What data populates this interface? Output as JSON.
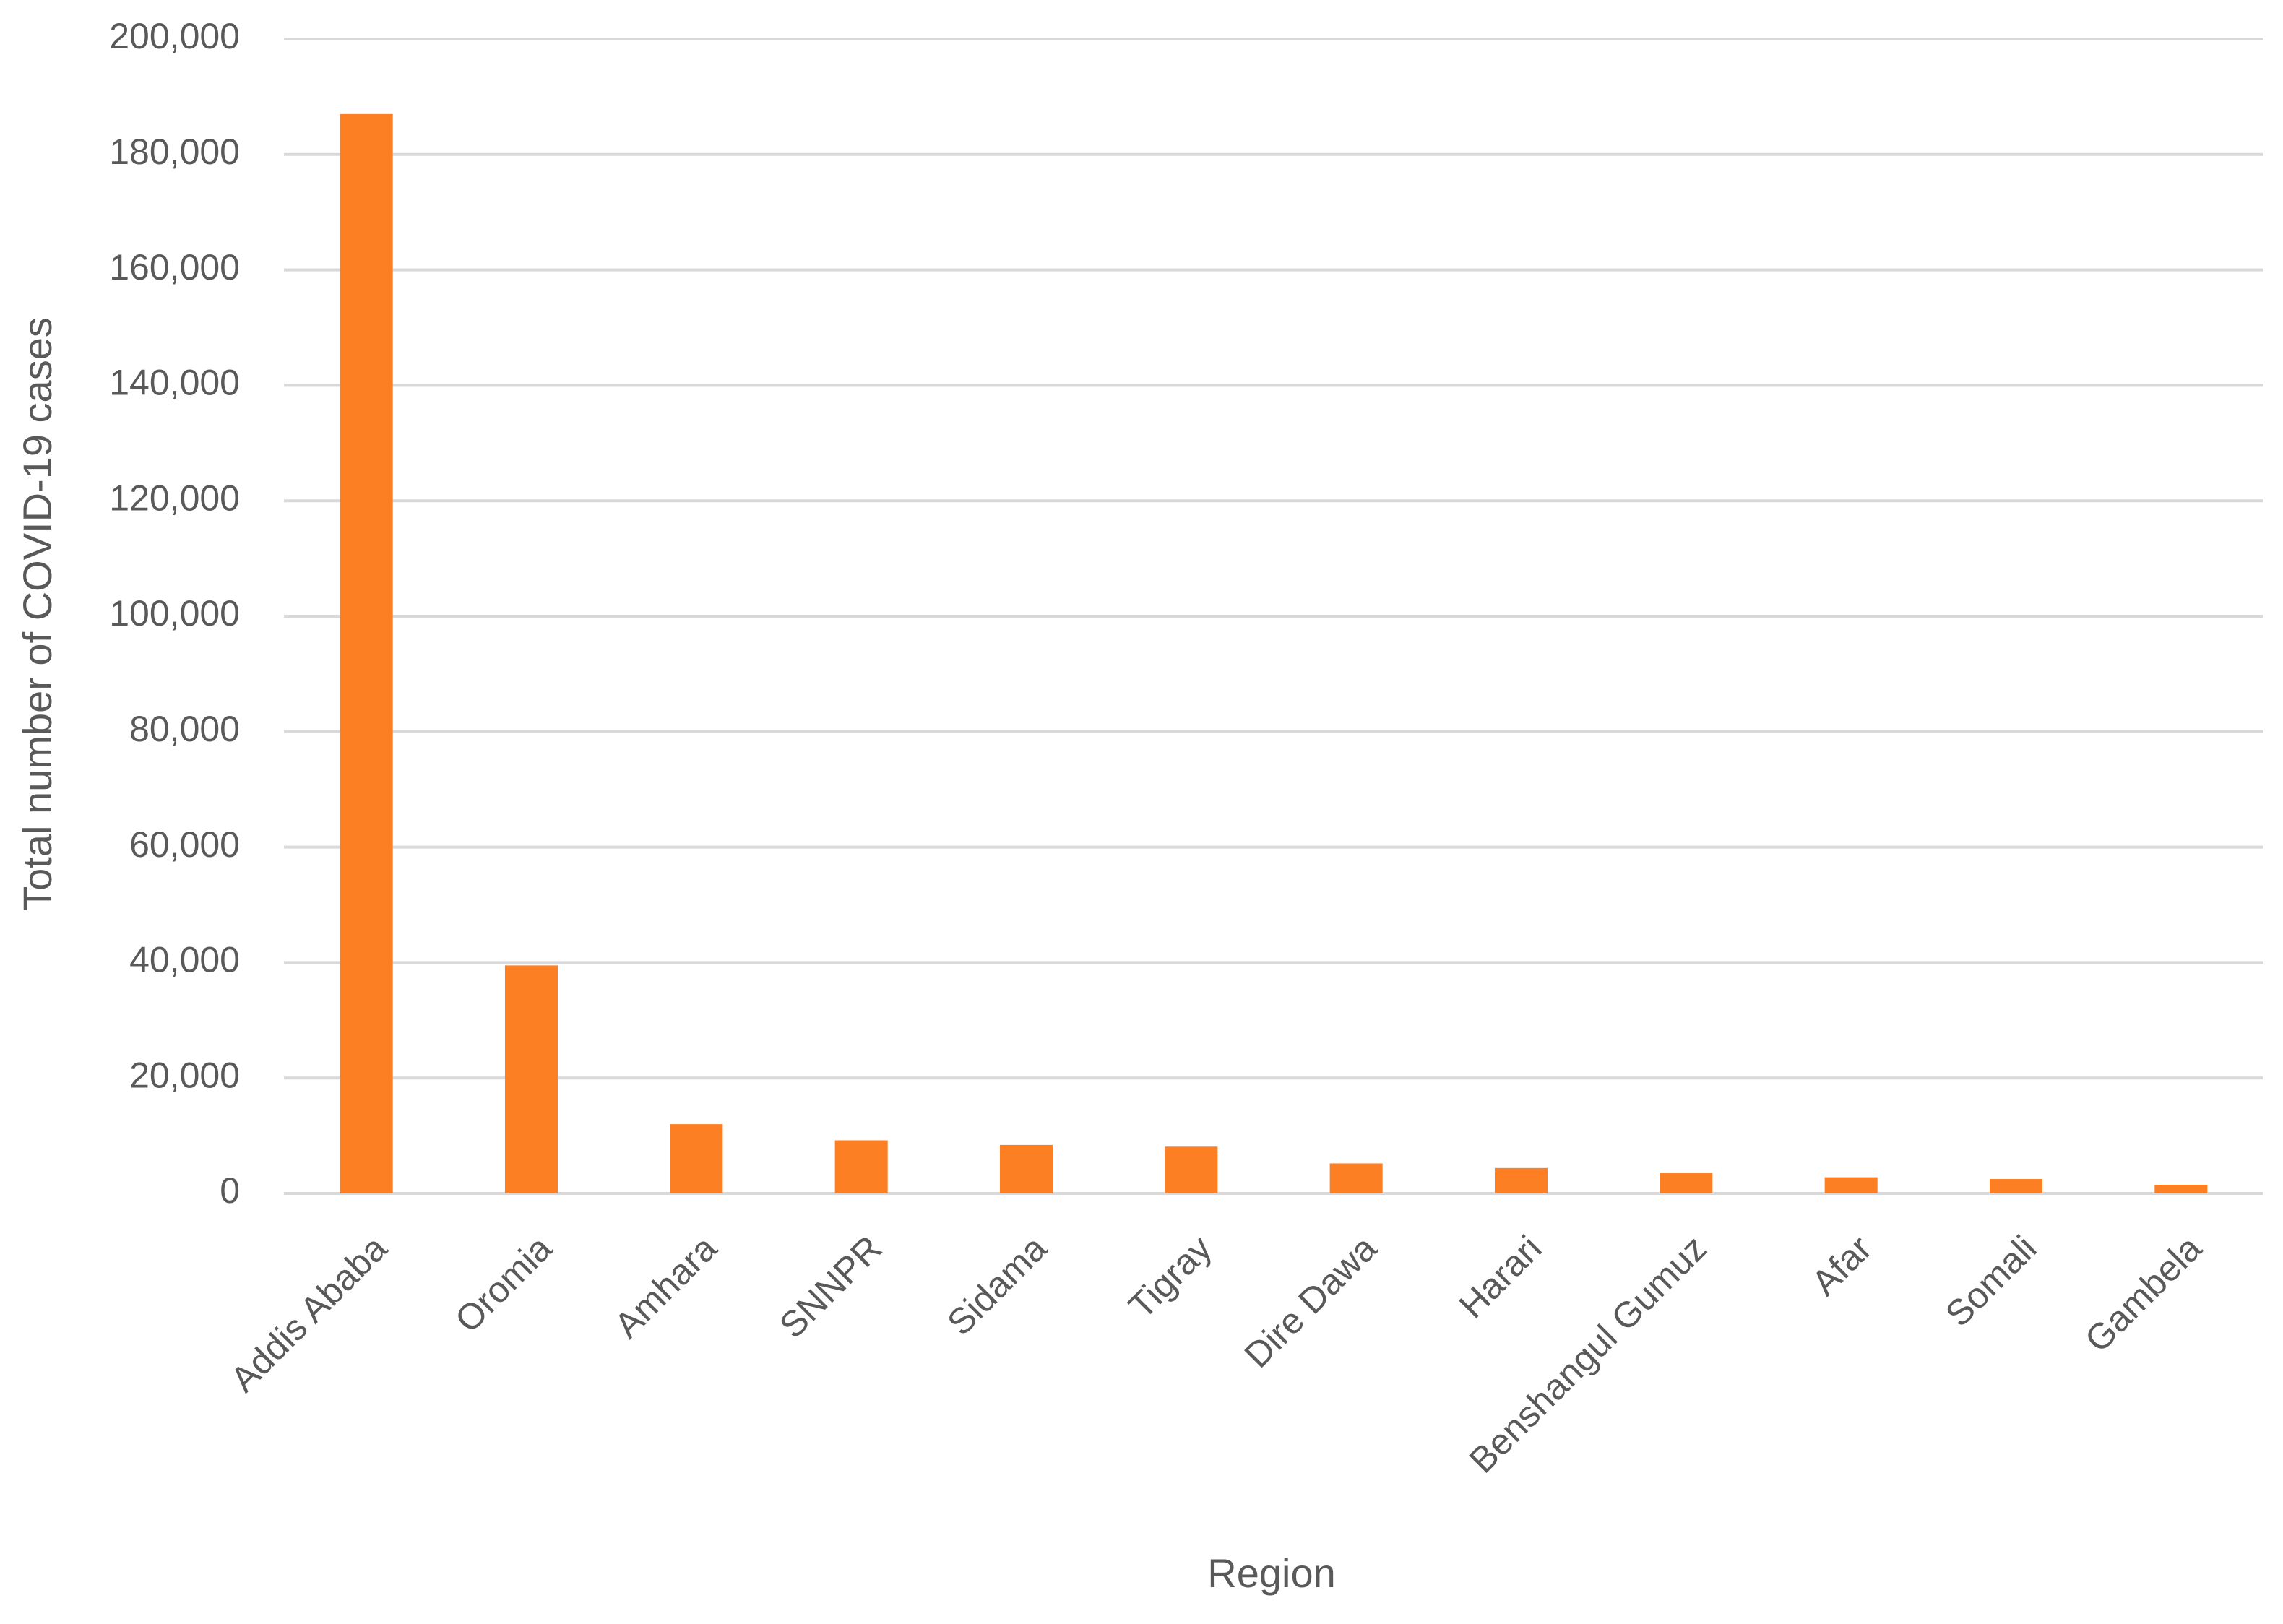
{
  "chart_data": {
    "type": "bar",
    "y_label": "Total number of COVID-19 cases",
    "x_label": "Region",
    "categories": [
      "Addis Ababa",
      "Oromia",
      "Amhara",
      "SNNPR",
      "Sidama",
      "Tigray",
      "Dire Dawa",
      "Harari",
      "Benshangul Gumuz",
      "Afar",
      "Somali",
      "Gambela"
    ],
    "values": [
      187000,
      39500,
      12000,
      9200,
      8400,
      8100,
      5200,
      4400,
      3500,
      2800,
      2500,
      1500
    ],
    "color": "#fd7f23",
    "ylim": [
      0,
      200000
    ],
    "yticks": [
      0,
      {
        "value": 20000,
        "label": "20,000"
      },
      {
        "value": 40000,
        "label": "40,000"
      },
      {
        "value": 60000,
        "label": "60,000"
      },
      {
        "value": 80000,
        "label": "80,000"
      },
      {
        "value": 100000,
        "label": "100,000"
      },
      {
        "value": 120000,
        "label": "120,000"
      },
      {
        "value": 140000,
        "label": "140,000"
      },
      {
        "value": 160000,
        "label": "160,000"
      },
      {
        "value": 180000,
        "label": "180,000"
      },
      {
        "value": 200000,
        "label": "200,000"
      }
    ],
    "grid": true
  }
}
